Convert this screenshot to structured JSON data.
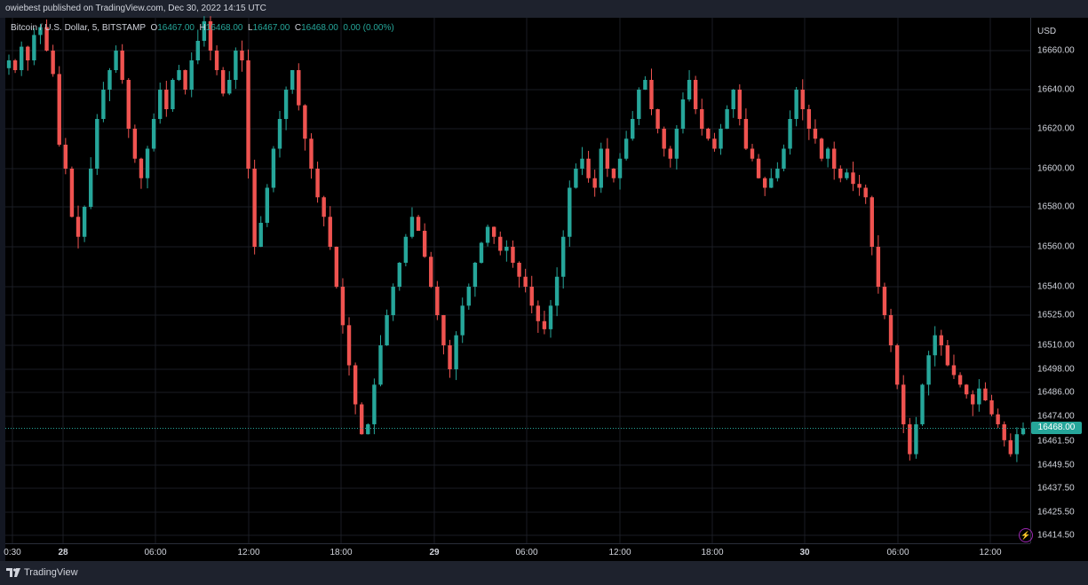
{
  "header": {
    "published_text": "owiebest published on TradingView.com, Dec 30, 2022 14:15 UTC"
  },
  "legend": {
    "symbol": "Bitcoin / U.S. Dollar, 5, BITSTAMP",
    "o_label": "O",
    "o_value": "16467.00",
    "h_label": "H",
    "h_value": "16468.00",
    "l_label": "L",
    "l_value": "16467.00",
    "c_label": "C",
    "c_value": "16468.00",
    "change": "0.00 (0.00%)"
  },
  "footer": {
    "brand": "TradingView"
  },
  "chart_data": {
    "type": "line",
    "title": "Bitcoin / U.S. Dollar, 5, BITSTAMP",
    "currency": "USD",
    "last_price": "16468.00",
    "colors": {
      "up": "#26a69a",
      "down": "#ef5350",
      "background": "#000000",
      "ui": "#131722"
    },
    "grid": true,
    "y_ticks": [
      "16660.00",
      "16640.00",
      "16620.00",
      "16600.00",
      "16580.00",
      "16560.00",
      "16540.00",
      "16525.00",
      "16510.00",
      "16498.00",
      "16486.00",
      "16474.00",
      "16461.50",
      "16449.50",
      "16437.50",
      "16425.50",
      "16414.50"
    ],
    "x_ticks": [
      {
        "label": "0:30",
        "bold": false
      },
      {
        "label": "28",
        "bold": true
      },
      {
        "label": "06:00",
        "bold": false
      },
      {
        "label": "12:00",
        "bold": false
      },
      {
        "label": "18:00",
        "bold": false
      },
      {
        "label": "29",
        "bold": true
      },
      {
        "label": "06:00",
        "bold": false
      },
      {
        "label": "12:00",
        "bold": false
      },
      {
        "label": "18:00",
        "bold": false
      },
      {
        "label": "30",
        "bold": true
      },
      {
        "label": "06:00",
        "bold": false
      },
      {
        "label": "12:00",
        "bold": false
      }
    ],
    "series": [
      {
        "values": [
          16655,
          16650,
          16662,
          16655,
          16668,
          16672,
          16660,
          16648,
          16612,
          16600,
          16575,
          16565,
          16580,
          16600,
          16625,
          16640,
          16650,
          16660,
          16645,
          16620,
          16605,
          16595,
          16610,
          16625,
          16640,
          16630,
          16645,
          16650,
          16640,
          16655,
          16665,
          16675,
          16660,
          16650,
          16638,
          16645,
          16660,
          16655,
          16600,
          16560,
          16572,
          16590,
          16610,
          16625,
          16640,
          16650,
          16632,
          16615,
          16600,
          16585,
          16575,
          16560,
          16540,
          16520,
          16500,
          16480,
          16465,
          16470,
          16490,
          16510,
          16525,
          16540,
          16552,
          16565,
          16575,
          16568,
          16555,
          16540,
          16525,
          16510,
          16498,
          16515,
          16530,
          16540,
          16552,
          16562,
          16570,
          16565,
          16558,
          16560,
          16552,
          16545,
          16540,
          16530,
          16522,
          16518,
          16530,
          16545,
          16565,
          16590,
          16600,
          16605,
          16595,
          16590,
          16610,
          16600,
          16595,
          16605,
          16615,
          16625,
          16640,
          16645,
          16630,
          16620,
          16610,
          16605,
          16620,
          16635,
          16645,
          16630,
          16620,
          16615,
          16610,
          16620,
          16630,
          16640,
          16625,
          16610,
          16605,
          16595,
          16590,
          16595,
          16600,
          16610,
          16625,
          16640,
          16630,
          16620,
          16615,
          16605,
          16610,
          16600,
          16595,
          16598,
          16592,
          16590,
          16585,
          16560,
          16540,
          16525,
          16510,
          16490,
          16470,
          16455,
          16470,
          16490,
          16505,
          16515,
          16510,
          16500,
          16495,
          16490,
          16485,
          16480,
          16488,
          16482,
          16475,
          16470,
          16462,
          16455,
          16465,
          16468
        ]
      }
    ]
  }
}
